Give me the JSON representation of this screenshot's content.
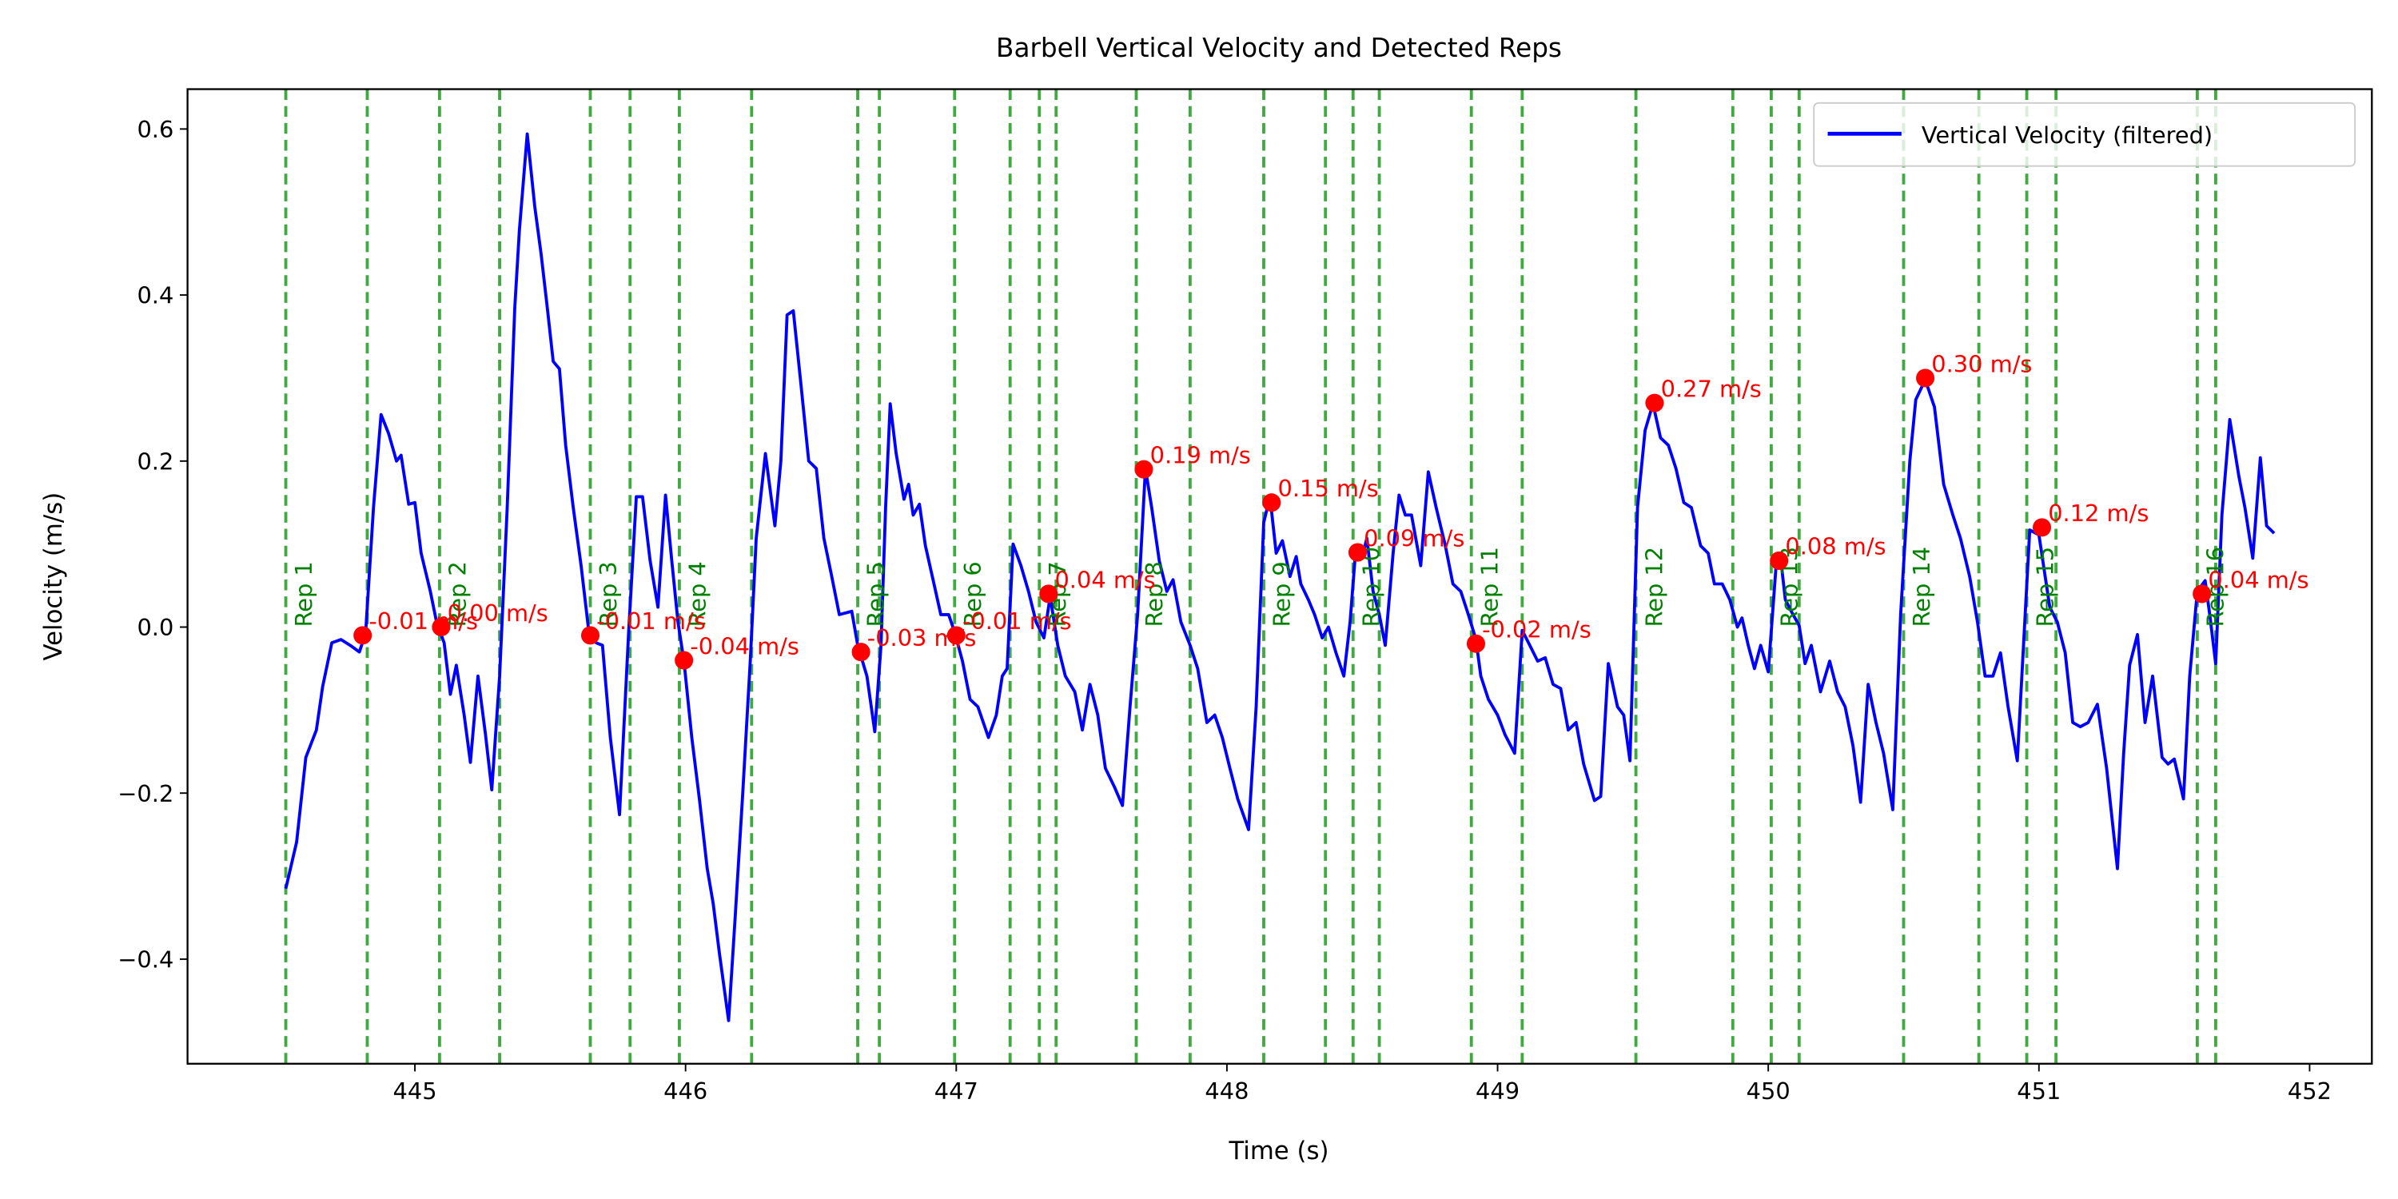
{
  "chart_data": {
    "type": "line",
    "title": "Barbell Vertical Velocity and Detected Reps",
    "xlabel": "Time (s)",
    "ylabel": "Velocity (m/s)",
    "xlim": [
      444.16,
      452.23
    ],
    "ylim": [
      -0.526,
      0.648
    ],
    "xticks": [
      445,
      446,
      447,
      448,
      449,
      450,
      451,
      452
    ],
    "yticks": [
      {
        "value": -0.4,
        "label": "−0.4"
      },
      {
        "value": -0.2,
        "label": "−0.2"
      },
      {
        "value": 0,
        "label": "0.0"
      },
      0.2,
      0.4,
      0.6
    ],
    "grid": false,
    "legend": "upper right",
    "x": [
      444.523,
      444.563,
      444.597,
      444.636,
      444.659,
      444.693,
      444.727,
      444.761,
      444.795,
      444.818,
      444.847,
      444.875,
      444.903,
      444.932,
      444.949,
      444.977,
      445.0,
      445.023,
      445.057,
      445.08,
      445.108,
      445.131,
      445.153,
      445.182,
      445.205,
      445.233,
      445.261,
      445.284,
      445.313,
      445.341,
      445.369,
      445.386,
      445.415,
      445.443,
      445.466,
      445.489,
      445.511,
      445.534,
      445.557,
      445.585,
      445.614,
      445.642,
      445.67,
      445.693,
      445.722,
      445.756,
      445.79,
      445.818,
      445.841,
      445.869,
      445.898,
      445.926,
      445.949,
      445.972,
      445.994,
      446.023,
      446.051,
      446.08,
      446.102,
      446.125,
      446.159,
      446.182,
      446.21,
      446.239,
      446.261,
      446.295,
      446.33,
      446.352,
      446.375,
      446.398,
      446.426,
      446.455,
      446.483,
      446.511,
      446.54,
      446.568,
      446.614,
      446.636,
      446.67,
      446.699,
      446.722,
      446.739,
      446.756,
      446.778,
      446.807,
      446.824,
      446.841,
      446.864,
      446.886,
      446.915,
      446.943,
      446.972,
      446.994,
      447.023,
      447.051,
      447.08,
      447.119,
      447.148,
      447.17,
      447.188,
      447.21,
      447.239,
      447.267,
      447.295,
      447.324,
      447.347,
      447.375,
      447.403,
      447.438,
      447.466,
      447.494,
      447.523,
      447.551,
      447.585,
      447.614,
      447.642,
      447.67,
      447.699,
      447.722,
      447.75,
      447.778,
      447.801,
      447.83,
      447.864,
      447.892,
      447.926,
      447.955,
      447.983,
      448.011,
      448.04,
      448.08,
      448.108,
      448.136,
      448.159,
      448.182,
      448.205,
      448.233,
      448.256,
      448.273,
      448.301,
      448.324,
      448.352,
      448.375,
      448.403,
      448.432,
      448.455,
      448.477,
      448.5,
      448.517,
      448.54,
      448.563,
      448.585,
      448.614,
      448.636,
      448.659,
      448.682,
      448.716,
      448.744,
      448.773,
      448.807,
      448.835,
      448.864,
      448.892,
      448.92,
      448.938,
      448.966,
      449.0,
      449.028,
      449.063,
      449.091,
      449.119,
      449.148,
      449.176,
      449.205,
      449.233,
      449.261,
      449.29,
      449.318,
      449.358,
      449.381,
      449.409,
      449.443,
      449.466,
      449.489,
      449.517,
      449.545,
      449.574,
      449.602,
      449.631,
      449.659,
      449.688,
      449.716,
      449.75,
      449.778,
      449.801,
      449.83,
      449.858,
      449.886,
      449.903,
      449.926,
      449.949,
      449.972,
      450.0,
      450.028,
      450.045,
      450.063,
      450.085,
      450.114,
      450.136,
      450.159,
      450.193,
      450.227,
      450.256,
      450.284,
      450.313,
      450.341,
      450.369,
      450.398,
      450.426,
      450.46,
      450.489,
      450.523,
      450.545,
      450.58,
      450.614,
      450.648,
      450.682,
      450.71,
      450.744,
      450.773,
      450.801,
      450.83,
      450.858,
      450.886,
      450.92,
      450.943,
      450.966,
      451.0,
      451.04,
      451.068,
      451.097,
      451.125,
      451.153,
      451.182,
      451.216,
      451.25,
      451.29,
      451.313,
      451.335,
      451.364,
      451.392,
      451.42,
      451.455,
      451.477,
      451.5,
      451.534,
      451.557,
      451.585,
      451.614,
      451.631,
      451.653,
      451.676,
      451.705,
      451.739,
      451.761,
      451.79,
      451.818,
      451.841,
      451.869
    ],
    "series": [
      {
        "name": "Vertical Velocity (filtered)",
        "color": "#0000ff",
        "values": [
          -0.315,
          -0.259,
          -0.157,
          -0.124,
          -0.072,
          -0.019,
          -0.015,
          -0.022,
          -0.03,
          -0.007,
          0.144,
          0.256,
          0.233,
          0.2,
          0.207,
          0.148,
          0.15,
          0.089,
          0.043,
          0.006,
          -0.019,
          -0.081,
          -0.046,
          -0.106,
          -0.163,
          -0.059,
          -0.13,
          -0.196,
          -0.059,
          0.144,
          0.385,
          0.478,
          0.594,
          0.506,
          0.45,
          0.385,
          0.32,
          0.311,
          0.219,
          0.144,
          0.074,
          -0.004,
          -0.019,
          -0.022,
          -0.133,
          -0.226,
          -0.004,
          0.157,
          0.157,
          0.08,
          0.024,
          0.159,
          0.08,
          0.006,
          -0.041,
          -0.133,
          -0.207,
          -0.291,
          -0.333,
          -0.393,
          -0.474,
          -0.356,
          -0.207,
          -0.041,
          0.107,
          0.209,
          0.122,
          0.2,
          0.376,
          0.381,
          0.293,
          0.2,
          0.191,
          0.107,
          0.061,
          0.015,
          0.019,
          -0.022,
          -0.059,
          -0.126,
          -0.022,
          0.144,
          0.269,
          0.209,
          0.154,
          0.172,
          0.135,
          0.148,
          0.098,
          0.056,
          0.015,
          0.015,
          -0.006,
          -0.041,
          -0.087,
          -0.096,
          -0.133,
          -0.106,
          -0.059,
          -0.05,
          0.1,
          0.074,
          0.043,
          0.006,
          -0.013,
          0.037,
          -0.022,
          -0.059,
          -0.078,
          -0.124,
          -0.069,
          -0.106,
          -0.17,
          -0.193,
          -0.215,
          -0.096,
          0.015,
          0.191,
          0.144,
          0.08,
          0.043,
          0.057,
          0.006,
          -0.022,
          -0.05,
          -0.115,
          -0.106,
          -0.133,
          -0.17,
          -0.207,
          -0.244,
          -0.096,
          0.126,
          0.157,
          0.089,
          0.104,
          0.061,
          0.085,
          0.052,
          0.033,
          0.015,
          -0.013,
          0.0,
          -0.031,
          -0.059,
          0.006,
          0.098,
          0.085,
          0.107,
          0.043,
          0.015,
          -0.022,
          0.089,
          0.159,
          0.135,
          0.135,
          0.074,
          0.187,
          0.144,
          0.098,
          0.052,
          0.043,
          0.015,
          -0.015,
          -0.059,
          -0.087,
          -0.106,
          -0.13,
          -0.152,
          -0.004,
          -0.022,
          -0.041,
          -0.037,
          -0.069,
          -0.074,
          -0.124,
          -0.115,
          -0.165,
          -0.209,
          -0.204,
          -0.044,
          -0.096,
          -0.106,
          -0.161,
          0.144,
          0.237,
          0.269,
          0.228,
          0.219,
          0.191,
          0.15,
          0.144,
          0.098,
          0.089,
          0.052,
          0.052,
          0.033,
          0.0,
          0.011,
          -0.022,
          -0.05,
          -0.022,
          -0.054,
          0.07,
          0.085,
          0.033,
          0.019,
          0.002,
          -0.044,
          -0.022,
          -0.078,
          -0.041,
          -0.078,
          -0.096,
          -0.143,
          -0.211,
          -0.069,
          -0.115,
          -0.152,
          -0.22,
          0.015,
          0.2,
          0.274,
          0.298,
          0.265,
          0.172,
          0.135,
          0.107,
          0.061,
          0.006,
          -0.059,
          -0.059,
          -0.031,
          -0.096,
          -0.161,
          -0.022,
          0.117,
          0.111,
          0.024,
          0.006,
          -0.031,
          -0.115,
          -0.12,
          -0.115,
          -0.093,
          -0.17,
          -0.291,
          -0.152,
          -0.046,
          -0.009,
          -0.115,
          -0.059,
          -0.157,
          -0.165,
          -0.159,
          -0.207,
          -0.059,
          0.043,
          0.056,
          0.015,
          -0.044,
          0.135,
          0.25,
          0.181,
          0.144,
          0.083,
          0.204,
          0.122,
          0.113
        ]
      }
    ],
    "reps": {
      "labels": [
        "Rep 1",
        "Rep 2",
        "Rep 3",
        "Rep 4",
        "Rep 5",
        "Rep 6",
        "Rep 7",
        "Rep 8",
        "Rep 9",
        "Rep 10",
        "Rep 11",
        "Rep 12",
        "Rep 13",
        "Rep 14",
        "Rep 15",
        "Rep 16"
      ],
      "color": "#2ca02c",
      "label_color": "#008000",
      "starts": [
        444.523,
        445.091,
        445.648,
        445.977,
        446.636,
        446.994,
        447.307,
        447.665,
        448.136,
        448.466,
        448.903,
        449.511,
        450.011,
        450.5,
        450.955,
        451.585
      ],
      "ends": [
        444.824,
        445.313,
        445.795,
        446.244,
        446.716,
        447.199,
        447.369,
        447.864,
        448.364,
        448.563,
        449.091,
        449.869,
        450.114,
        450.778,
        451.063,
        451.653
      ],
      "peak_x": [
        444.807,
        445.097,
        445.648,
        445.994,
        446.648,
        447.0,
        447.341,
        447.693,
        448.165,
        448.483,
        448.92,
        449.58,
        450.04,
        450.58,
        451.011,
        451.602
      ],
      "peak_values": [
        -0.01,
        0.0,
        -0.01,
        -0.04,
        -0.03,
        -0.01,
        0.04,
        0.19,
        0.15,
        0.09,
        -0.02,
        0.27,
        0.08,
        0.3,
        0.12,
        0.04
      ],
      "value_labels": [
        "-0.01 m/s",
        "0.00 m/s",
        "-0.01 m/s",
        "-0.04 m/s",
        "-0.03 m/s",
        "-0.01 m/s",
        "0.04 m/s",
        "0.19 m/s",
        "0.15 m/s",
        "0.09 m/s",
        "-0.02 m/s",
        "0.27 m/s",
        "0.08 m/s",
        "0.30 m/s",
        "0.12 m/s",
        "0.04 m/s"
      ],
      "marker_color": "#ff0000"
    }
  }
}
